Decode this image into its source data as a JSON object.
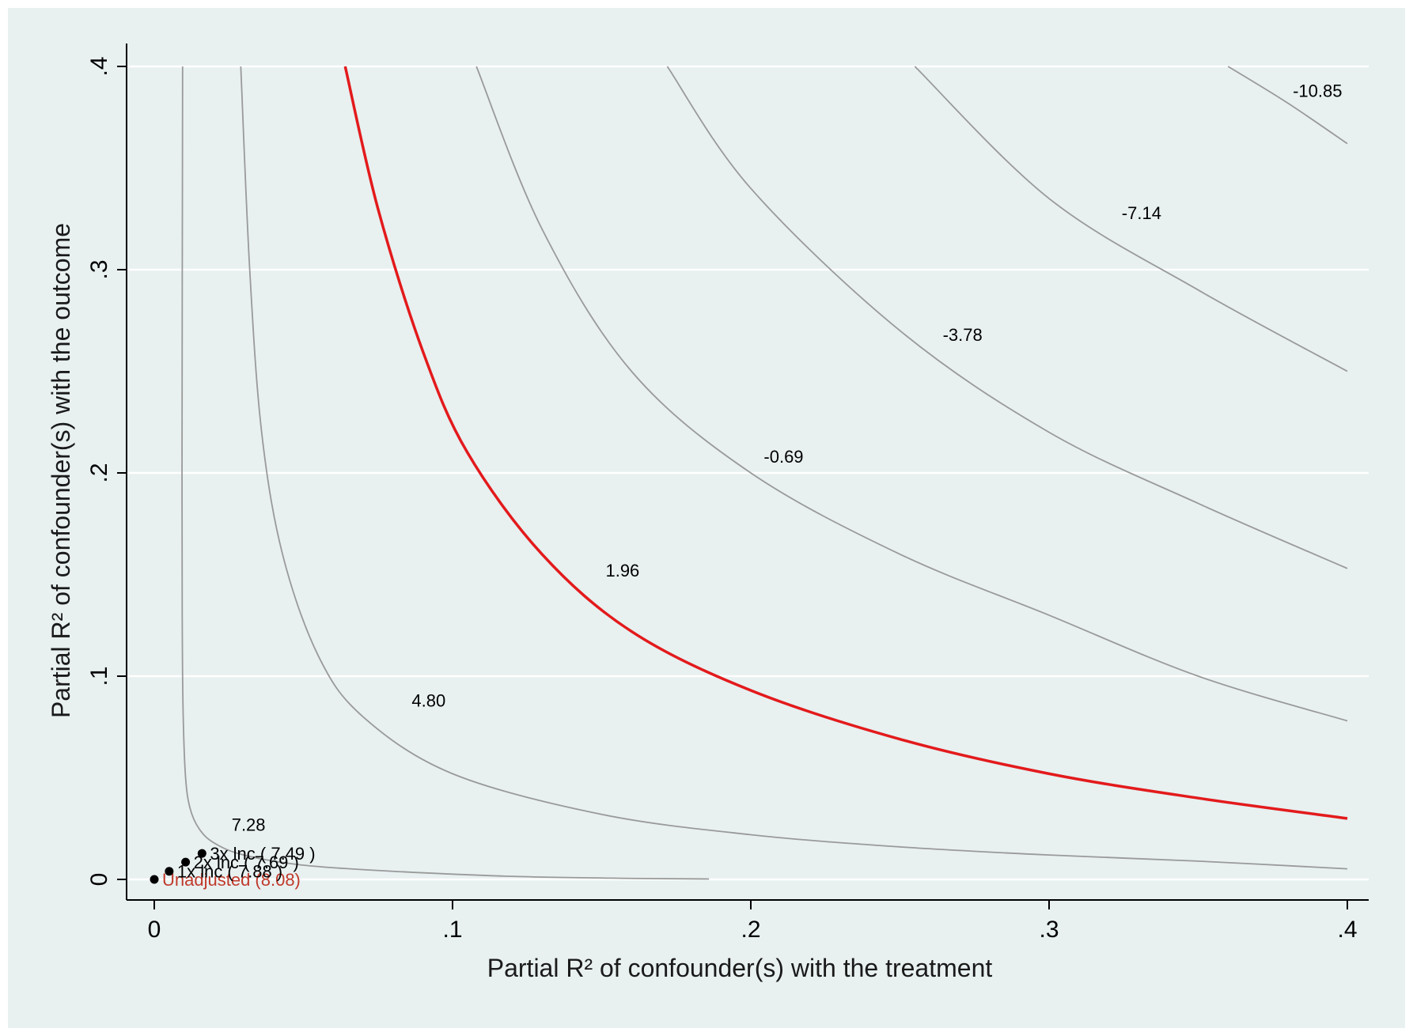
{
  "chart_data": {
    "type": "line",
    "title": "",
    "xlabel": "Partial R² of confounder(s) with the treatment",
    "ylabel": "Partial R² of confounder(s) with the outcome",
    "xlim": [
      0,
      0.4
    ],
    "ylim": [
      0,
      0.4
    ],
    "x_ticks": [
      {
        "value": 0,
        "label": "0"
      },
      {
        "value": 0.1,
        "label": ".1"
      },
      {
        "value": 0.2,
        "label": ".2"
      },
      {
        "value": 0.3,
        "label": ".3"
      },
      {
        "value": 0.4,
        "label": ".4"
      }
    ],
    "y_ticks": [
      {
        "value": 0,
        "label": "0"
      },
      {
        "value": 0.1,
        "label": ".1"
      },
      {
        "value": 0.2,
        "label": ".2"
      },
      {
        "value": 0.3,
        "label": ".3"
      },
      {
        "value": 0.4,
        "label": ".4"
      }
    ],
    "grid": "horizontal",
    "contours": [
      {
        "label": "7.28",
        "color": "#9a9a9a",
        "highlight": false,
        "label_at": [
          0.0316,
          0.024
        ],
        "points": [
          [
            0.0095,
            0.4
          ],
          [
            0.0093,
            0.2
          ],
          [
            0.0094,
            0.12
          ],
          [
            0.0097,
            0.08
          ],
          [
            0.0105,
            0.05
          ],
          [
            0.012,
            0.035
          ],
          [
            0.015,
            0.025
          ],
          [
            0.02,
            0.018
          ],
          [
            0.03,
            0.012
          ],
          [
            0.05,
            0.007
          ],
          [
            0.08,
            0.004
          ],
          [
            0.12,
            0.0015
          ],
          [
            0.16,
            0.0005
          ],
          [
            0.186,
            0.0002
          ]
        ]
      },
      {
        "label": "4.80",
        "color": "#9a9a9a",
        "highlight": false,
        "label_at": [
          0.092,
          0.085
        ],
        "points": [
          [
            0.029,
            0.4
          ],
          [
            0.032,
            0.3
          ],
          [
            0.036,
            0.22
          ],
          [
            0.043,
            0.16
          ],
          [
            0.055,
            0.11
          ],
          [
            0.07,
            0.08
          ],
          [
            0.1,
            0.052
          ],
          [
            0.15,
            0.032
          ],
          [
            0.2,
            0.022
          ],
          [
            0.25,
            0.016
          ],
          [
            0.3,
            0.012
          ],
          [
            0.35,
            0.009
          ],
          [
            0.4,
            0.0052
          ]
        ]
      },
      {
        "label": "1.96",
        "color": "#e31a1c",
        "highlight": true,
        "label_at": [
          0.157,
          0.149
        ],
        "points": [
          [
            0.064,
            0.4
          ],
          [
            0.075,
            0.33
          ],
          [
            0.09,
            0.26
          ],
          [
            0.105,
            0.21
          ],
          [
            0.13,
            0.16
          ],
          [
            0.16,
            0.122
          ],
          [
            0.2,
            0.093
          ],
          [
            0.25,
            0.069
          ],
          [
            0.3,
            0.052
          ],
          [
            0.35,
            0.04
          ],
          [
            0.4,
            0.03
          ]
        ]
      },
      {
        "label": "-0.69",
        "color": "#9a9a9a",
        "highlight": false,
        "label_at": [
          0.211,
          0.205
        ],
        "points": [
          [
            0.108,
            0.4
          ],
          [
            0.13,
            0.32
          ],
          [
            0.16,
            0.25
          ],
          [
            0.2,
            0.2
          ],
          [
            0.25,
            0.16
          ],
          [
            0.3,
            0.13
          ],
          [
            0.35,
            0.1
          ],
          [
            0.4,
            0.078
          ]
        ]
      },
      {
        "label": "-3.78",
        "color": "#9a9a9a",
        "highlight": false,
        "label_at": [
          0.271,
          0.265
        ],
        "points": [
          [
            0.172,
            0.4
          ],
          [
            0.2,
            0.34
          ],
          [
            0.25,
            0.27
          ],
          [
            0.3,
            0.22
          ],
          [
            0.35,
            0.185
          ],
          [
            0.4,
            0.153
          ]
        ]
      },
      {
        "label": "-7.14",
        "color": "#9a9a9a",
        "highlight": false,
        "label_at": [
          0.331,
          0.325
        ],
        "points": [
          [
            0.255,
            0.4
          ],
          [
            0.3,
            0.335
          ],
          [
            0.35,
            0.29
          ],
          [
            0.4,
            0.25
          ]
        ]
      },
      {
        "label": "-10.85",
        "color": "#9a9a9a",
        "highlight": false,
        "label_at": [
          0.39,
          0.385
        ],
        "points": [
          [
            0.36,
            0.4
          ],
          [
            0.38,
            0.382
          ],
          [
            0.4,
            0.362
          ]
        ]
      }
    ],
    "points": [
      {
        "label": "Unadjusted (8.08)",
        "x": 0,
        "y": 0,
        "color": "#c0392b"
      },
      {
        "label": "1x lnc ( 7.88 )",
        "x": 0.005,
        "y": 0.004,
        "color": "#000000"
      },
      {
        "label": "2x lnc ( 7.69 )",
        "x": 0.0105,
        "y": 0.0085,
        "color": "#000000"
      },
      {
        "label": "3x lnc ( 7.49 )",
        "x": 0.016,
        "y": 0.0128,
        "color": "#000000"
      }
    ]
  }
}
